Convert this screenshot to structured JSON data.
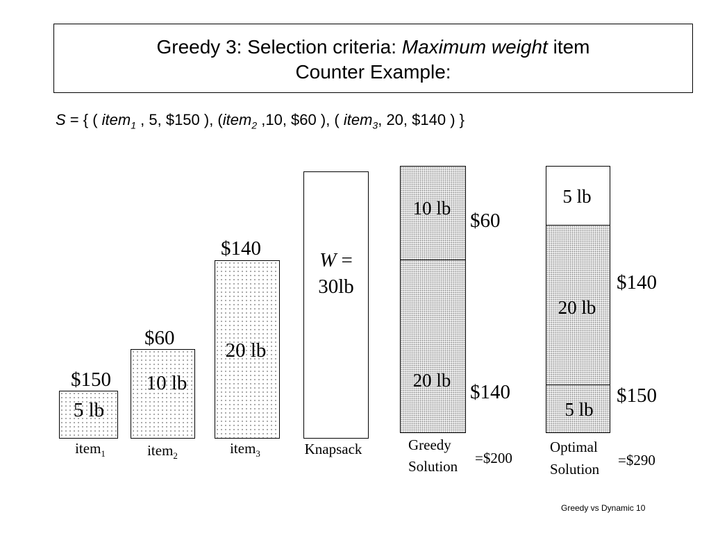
{
  "title": {
    "prefix": "Greedy 3: Selection criteria: ",
    "italic": "Maximum weight",
    "suffix": " item",
    "line2": "Counter Example:"
  },
  "set_definition": {
    "set_name": "S",
    "open": " = { ( ",
    "item1_name": "item",
    "item1_sub": "1",
    "item1_rest": " , 5, $150 ), (",
    "item2_name": "item",
    "item2_sub": "2",
    "item2_rest": " ,10, $60 ), ( ",
    "item3_name": "item",
    "item3_sub": "3",
    "item3_rest": ", 20, $140 ) }"
  },
  "items": [
    {
      "label": "item",
      "sub": "1",
      "weight": "5 lb",
      "value": "$150"
    },
    {
      "label": "item",
      "sub": "2",
      "weight": "10 lb",
      "value": "$60"
    },
    {
      "label": "item",
      "sub": "3",
      "weight": "20 lb",
      "value": "$140"
    }
  ],
  "knapsack": {
    "capacity_var": "W",
    "capacity_eq": " =",
    "capacity_value": "30lb",
    "label": "Knapsack"
  },
  "greedy_solution": {
    "label_line1": "Greedy",
    "label_line2": "Solution",
    "top_weight": "10 lb",
    "top_value": "$60",
    "bottom_weight": "20 lb",
    "bottom_value": "$140",
    "total": "=$200"
  },
  "optimal_solution": {
    "label_line1": "Optimal",
    "label_line2": "Solution",
    "top_weight": "5 lb",
    "middle_weight": "20 lb",
    "middle_value": "$140",
    "bottom_weight": "5 lb",
    "bottom_value": "$150",
    "total": "=$290"
  },
  "footer": "Greedy vs Dynamic 10"
}
